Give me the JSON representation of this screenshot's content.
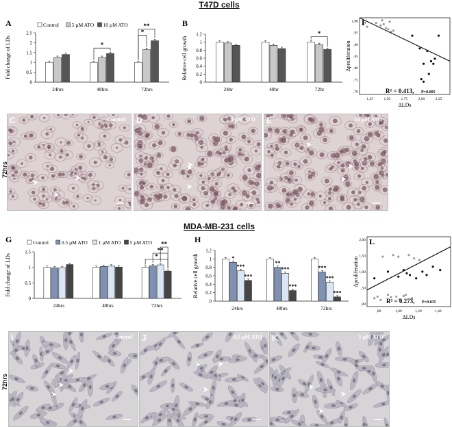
{
  "sections": {
    "top_title": "T47D cells",
    "bottom_title": "MDA-MB-231 cells"
  },
  "row_labels": {
    "top": "72hrs",
    "bottom": "72hrs"
  },
  "panels": {
    "A": "A",
    "B": "B",
    "C": "C",
    "D": "D",
    "E": "E",
    "F": "F",
    "G": "G",
    "H": "H",
    "I": "I",
    "J": "J",
    "K": "K",
    "L": "L"
  },
  "photo_captions": {
    "C": "Control",
    "D": "5 µM ATO",
    "E": "10 µM ATO",
    "I": "Control",
    "J": "0.5 µM ATO",
    "K": "1 µM ATO"
  },
  "colors": {
    "control": "#ffffff",
    "ato5_t47d": "#c8c8c8",
    "ato10_t47d": "#555555",
    "ato05_mda": "#7f92b4",
    "ato1_mda": "#dbe6f4",
    "ato5_mda": "#454545",
    "photo_bg_top": "#ddd3d5",
    "photo_bg_bottom": "#d6d4d6",
    "cell_top": "#7a5560",
    "cell_bottom": "#6e6d78"
  },
  "chart_data": [
    {
      "id": "A",
      "type": "bar",
      "ylabel": "Fold change of LDs",
      "categories": [
        "24hrs",
        "48hrs",
        "72hrs"
      ],
      "yticks": [
        "0",
        "0.5",
        "1",
        "1.5",
        "2",
        "2.5"
      ],
      "ylim": [
        0,
        2.5
      ],
      "legend": [
        "Control",
        "5 µM ATO",
        "10 µM ATO"
      ],
      "series": [
        {
          "name": "Control",
          "values": [
            1,
            1,
            1
          ]
        },
        {
          "name": "5 µM ATO",
          "values": [
            1.25,
            1.25,
            1.65
          ]
        },
        {
          "name": "10 µM ATO",
          "values": [
            1.4,
            1.45,
            2.1
          ]
        }
      ],
      "significance": [
        {
          "category": "48hrs",
          "from": 0,
          "to": 2,
          "label": "*"
        },
        {
          "category": "72hrs",
          "from": 0,
          "to": 1,
          "label": "*"
        },
        {
          "category": "72hrs",
          "from": 0,
          "to": 2,
          "label": "**"
        }
      ]
    },
    {
      "id": "B",
      "type": "bar",
      "ylabel": "Relative cell growth",
      "categories": [
        "24hr",
        "48hr",
        "72hr"
      ],
      "yticks": [
        "0",
        "0.2",
        "0.4",
        "0.6",
        "0.8",
        "1",
        "1.2"
      ],
      "ylim": [
        0,
        1.2
      ],
      "series": [
        {
          "name": "Control",
          "values": [
            1,
            1,
            1
          ]
        },
        {
          "name": "5 µM ATO",
          "values": [
            0.98,
            0.92,
            0.94
          ]
        },
        {
          "name": "10 µM ATO",
          "values": [
            0.92,
            0.84,
            0.82
          ]
        }
      ],
      "significance": [
        {
          "category": "72hr",
          "from": 0,
          "to": 2,
          "label": "*"
        }
      ]
    },
    {
      "id": "F",
      "type": "scatter",
      "xlabel": "ΔLDs",
      "ylabel": "Δproliferation",
      "xticks": [
        "1,25",
        "1,50",
        "1,75",
        "2,00",
        "2,25"
      ],
      "yticks": [
        ",70",
        ",75",
        ",80",
        ",85",
        ",90",
        ",95",
        "1,00"
      ],
      "xlim": [
        1.2,
        2.4
      ],
      "ylim": [
        0.7,
        1.0
      ],
      "annotation": "R² = 0.413,",
      "pvalue": "P=0.005",
      "points_grey": [
        [
          1.3,
          0.965
        ],
        [
          1.42,
          0.98
        ],
        [
          1.5,
          0.99
        ],
        [
          1.52,
          0.975
        ],
        [
          1.55,
          0.96
        ],
        [
          1.58,
          0.955
        ],
        [
          1.6,
          0.985
        ],
        [
          1.62,
          0.945
        ],
        [
          1.65,
          0.95
        ],
        [
          1.48,
          0.97
        ]
      ],
      "points_black": [
        [
          1.9,
          0.93
        ],
        [
          2.0,
          0.88
        ],
        [
          2.05,
          0.82
        ],
        [
          2.1,
          0.87
        ],
        [
          2.15,
          0.83
        ],
        [
          2.18,
          0.82
        ],
        [
          2.25,
          0.93
        ],
        [
          2.02,
          0.76
        ],
        [
          2.05,
          0.75
        ],
        [
          2.12,
          0.78
        ],
        [
          2.2,
          0.84
        ]
      ],
      "fit": [
        [
          1.2,
          1.0
        ],
        [
          2.4,
          0.83
        ]
      ]
    },
    {
      "id": "G",
      "type": "bar",
      "ylabel": "Fold change of LDs",
      "categories": [
        "24hrs",
        "48hrs",
        "72hrs"
      ],
      "yticks": [
        "0",
        "0.5",
        "1",
        "1.5"
      ],
      "ylim": [
        0,
        1.5
      ],
      "legend": [
        "Control",
        "0.5 µM ATO",
        "1 µM ATO",
        "5 µM ATO"
      ],
      "series": [
        {
          "name": "Control",
          "values": [
            1,
            1,
            1
          ]
        },
        {
          "name": "0.5 µM ATO",
          "values": [
            0.98,
            1.03,
            1.05
          ]
        },
        {
          "name": "1 µM ATO",
          "values": [
            0.99,
            1.04,
            1.08
          ]
        },
        {
          "name": "5 µM ATO",
          "values": [
            1.09,
            1.01,
            0.88
          ]
        }
      ],
      "significance": [
        {
          "category": "72hrs",
          "from": 0,
          "to": 3,
          "label": "*"
        },
        {
          "category": "72hrs",
          "from": 1,
          "to": 3,
          "label": "**"
        },
        {
          "category": "72hrs",
          "from": 2,
          "to": 3,
          "label": "**"
        }
      ]
    },
    {
      "id": "H",
      "type": "bar",
      "ylabel": "Relative cell growth",
      "categories": [
        "24hrs",
        "48hrs",
        "72hrs"
      ],
      "yticks": [
        "0",
        "0.2",
        "0.4",
        "0.6",
        "0.8",
        "1",
        "1.2"
      ],
      "ylim": [
        0,
        1.2
      ],
      "series": [
        {
          "name": "Control",
          "values": [
            1,
            1,
            1
          ]
        },
        {
          "name": "0.5 µM ATO",
          "values": [
            0.92,
            0.8,
            0.69
          ]
        },
        {
          "name": "1 µM ATO",
          "values": [
            0.72,
            0.66,
            0.45
          ]
        },
        {
          "name": "5 µM ATO",
          "values": [
            0.49,
            0.25,
            0.1
          ]
        }
      ],
      "bar_labels": [
        [
          "",
          "*",
          "***",
          "***"
        ],
        [
          "",
          "**",
          "***",
          "***"
        ],
        [
          "",
          "***",
          "***",
          "***"
        ]
      ]
    },
    {
      "id": "L",
      "type": "scatter",
      "xlabel": "ΔLDs",
      "ylabel": "Δproliferation",
      "xticks": [
        ",80",
        "1,00",
        "1,20",
        "1,40"
      ],
      "yticks": [
        ",00",
        ",50",
        "1,00",
        "1,50",
        "2,00"
      ],
      "xlim": [
        0.65,
        1.45
      ],
      "ylim": [
        0,
        2.1
      ],
      "annotation": "R² = 0.273,",
      "pvalue": "P=0.035",
      "points_grey": [
        [
          0.72,
          0.25
        ],
        [
          0.75,
          0.3
        ],
        [
          0.78,
          0.2
        ],
        [
          0.85,
          0.35
        ],
        [
          0.88,
          0.28
        ],
        [
          0.93,
          0.3
        ],
        [
          0.96,
          0.22
        ],
        [
          1.0,
          0.32
        ],
        [
          1.02,
          0.35
        ],
        [
          1.08,
          0.25
        ],
        [
          0.8,
          1.5
        ],
        [
          0.9,
          1.55
        ],
        [
          0.95,
          1.5
        ],
        [
          1.05,
          1.55
        ],
        [
          1.1,
          1.45
        ],
        [
          1.15,
          1.4
        ]
      ],
      "points_black": [
        [
          0.72,
          0.85
        ],
        [
          0.85,
          1.05
        ],
        [
          0.95,
          0.9
        ],
        [
          1.0,
          1.1
        ],
        [
          1.03,
          1.0
        ],
        [
          1.06,
          0.95
        ],
        [
          1.12,
          0.85
        ],
        [
          1.18,
          1.05
        ],
        [
          1.22,
          0.95
        ],
        [
          1.28,
          1.2
        ],
        [
          1.35,
          1.1
        ]
      ],
      "fit": [
        [
          0.65,
          0.5
        ],
        [
          1.45,
          1.8
        ]
      ]
    }
  ]
}
